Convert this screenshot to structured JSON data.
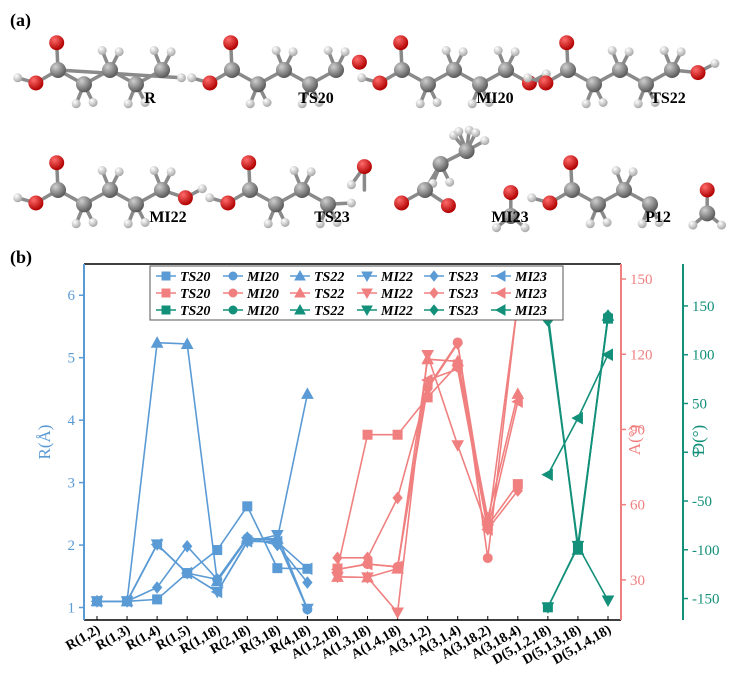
{
  "panel_a": {
    "label": "(a)",
    "molecules": [
      {
        "label": "R",
        "skel": [
          [
            0,
            0
          ],
          [
            1,
            0.55
          ],
          [
            2,
            0
          ],
          [
            3,
            0.55
          ],
          [
            4,
            0
          ]
        ],
        "oxy": [
          [
            -0.05,
            -1.05
          ]
        ],
        "ohLeft": true,
        "extra": [],
        "free": []
      },
      {
        "label": "TS20",
        "skel": [
          [
            0,
            0
          ],
          [
            1,
            0.55
          ],
          [
            2,
            0
          ],
          [
            3,
            0.55
          ],
          [
            4,
            0
          ]
        ],
        "oxy": [
          [
            -0.05,
            -1.05
          ]
        ],
        "ohLeft": true,
        "extra": [],
        "free": [
          [
            4.9,
            -0.3
          ]
        ]
      },
      {
        "label": "MI20",
        "skel": [
          [
            0,
            0
          ],
          [
            1,
            0.55
          ],
          [
            2,
            0
          ],
          [
            3,
            0.55
          ],
          [
            4,
            0
          ]
        ],
        "oxy": [
          [
            -0.05,
            -1.05
          ]
        ],
        "ohLeft": true,
        "extra": [
          [
            4.9,
            0.5
          ]
        ],
        "free": []
      },
      {
        "label": "TS22",
        "skel": [
          [
            0,
            0
          ],
          [
            1,
            0.55
          ],
          [
            2,
            0
          ],
          [
            3,
            0.55
          ],
          [
            4,
            0
          ]
        ],
        "oxy": [
          [
            -0.05,
            -1.05
          ]
        ],
        "ohLeft": true,
        "extra": [
          [
            5.0,
            0.1
          ]
        ],
        "free": []
      },
      {
        "label": "MI22",
        "skel": [
          [
            0,
            0
          ],
          [
            1,
            0.55
          ],
          [
            2,
            0
          ],
          [
            3,
            0.55
          ],
          [
            4,
            0
          ]
        ],
        "oxy": [
          [
            -0.05,
            -1.05
          ]
        ],
        "ohLeft": true,
        "extra": [
          [
            4.9,
            0.3
          ]
        ],
        "free": []
      },
      {
        "label": "TS23",
        "skel": [
          [
            0,
            0
          ],
          [
            1,
            0.55
          ],
          [
            2,
            0
          ],
          [
            3,
            0.55
          ]
        ],
        "oxy": [
          [
            -0.05,
            -1.05
          ]
        ],
        "ohLeft": true,
        "extra": [],
        "free": [
          [
            4.4,
            -0.9
          ]
        ]
      },
      {
        "label": "MI23",
        "skel": [
          [
            0,
            0
          ],
          [
            0.6,
            -1.0
          ],
          [
            1.6,
            -1.5
          ]
        ],
        "oxy": [
          [
            -0.9,
            0.5
          ],
          [
            0.9,
            0.6
          ]
        ],
        "ohLeft": false,
        "extra": [],
        "free": [
          [
            3.3,
            0.1
          ]
        ]
      },
      {
        "label": "P12",
        "skel": [
          [
            0,
            0
          ],
          [
            1,
            0.55
          ],
          [
            2,
            0
          ],
          [
            3,
            0.55
          ]
        ],
        "oxy": [
          [
            -0.05,
            -1.05
          ]
        ],
        "ohLeft": true,
        "extra": [],
        "free": [
          [
            5.2,
            0.0
          ]
        ]
      }
    ]
  },
  "panel_b": {
    "label": "(b)"
  },
  "chart_data": {
    "type": "line",
    "categories": [
      "R(1,2)",
      "R(1,3)",
      "R(1,4)",
      "R(1,5)",
      "R(1,18)",
      "R(2,18)",
      "R(3,18)",
      "R(4,18)",
      "A(1,2,18)",
      "A(1,3,18)",
      "A(1,4,18)",
      "A(3,1,2)",
      "A(3,1,4)",
      "A(3,18,2)",
      "A(3,18,4)",
      "D(5,1,2,18)",
      "D(5,1,3,18)",
      "D(5,1,4,18)"
    ],
    "groups": [
      {
        "name": "R",
        "axis": "left",
        "ylabel": "R(Å)",
        "ylim": [
          0.8,
          6.5
        ],
        "ticks": [
          1,
          2,
          3,
          4,
          5,
          6
        ],
        "color": "#5b9bd5",
        "start": 0
      },
      {
        "name": "A",
        "axis": "right1",
        "ylabel": "A(°)",
        "ylim": [
          14,
          156
        ],
        "ticks": [
          30,
          60,
          90,
          120,
          150
        ],
        "color": "#f08080",
        "start": 8
      },
      {
        "name": "D",
        "axis": "right2",
        "ylabel": "D(°)",
        "ylim": [
          -172,
          193
        ],
        "ticks": [
          -150,
          -100,
          -50,
          0,
          50,
          100,
          150
        ],
        "color": "#13907a",
        "start": 15
      }
    ],
    "series_names": [
      "TS20",
      "MI20",
      "TS22",
      "MI22",
      "TS23",
      "MI23"
    ],
    "markers": [
      "square",
      "circle",
      "triangle-up",
      "triangle-down",
      "diamond",
      "triangle-left"
    ],
    "R": [
      [
        1.1,
        1.1,
        1.13,
        1.55,
        1.92,
        2.62,
        1.63,
        1.62
      ],
      [
        1.1,
        1.1,
        2.01,
        1.55,
        1.45,
        2.11,
        2.07,
        0.97
      ],
      [
        1.1,
        1.1,
        5.24,
        5.22,
        1.42,
        2.1,
        2.1,
        4.42
      ],
      [
        1.1,
        1.1,
        2.01,
        1.55,
        1.25,
        2.05,
        2.16,
        0.98
      ],
      [
        1.1,
        1.1,
        1.32,
        1.98,
        1.45,
        2.12,
        2.0,
        1.4
      ],
      [
        1.1,
        1.1,
        2.01,
        1.55,
        1.25,
        2.06,
        2.05,
        1.62
      ]
    ],
    "A": [
      [
        34.5,
        87.9,
        87.9,
        102.8,
        115.9,
        51.6,
        68.2
      ],
      [
        34.2,
        36.3,
        35.2,
        106.8,
        124.7,
        38.7,
        141.1
      ],
      [
        31.2,
        31.0,
        34.5,
        118.0,
        117.2,
        54.6,
        104.2
      ],
      [
        31.2,
        31.0,
        17.0,
        119.7,
        83.7,
        50.2,
        141.1
      ],
      [
        38.8,
        38.8,
        62.7,
        106.2,
        124.2,
        50.2,
        65.6
      ],
      [
        34.2,
        36.3,
        35.2,
        109.7,
        114.1,
        50.1,
        101.1
      ]
    ],
    "D": [
      [
        -159,
        -97,
        137
      ],
      [
        138,
        -95,
        139
      ],
      [
        143,
        -100,
        140
      ],
      [
        -159,
        -96,
        -152
      ],
      [
        135,
        -97,
        140
      ],
      [
        -23,
        35,
        100
      ]
    ],
    "D_alt": [
      null,
      null,
      [
        -93,
        -100,
        -93
      ]
    ]
  }
}
